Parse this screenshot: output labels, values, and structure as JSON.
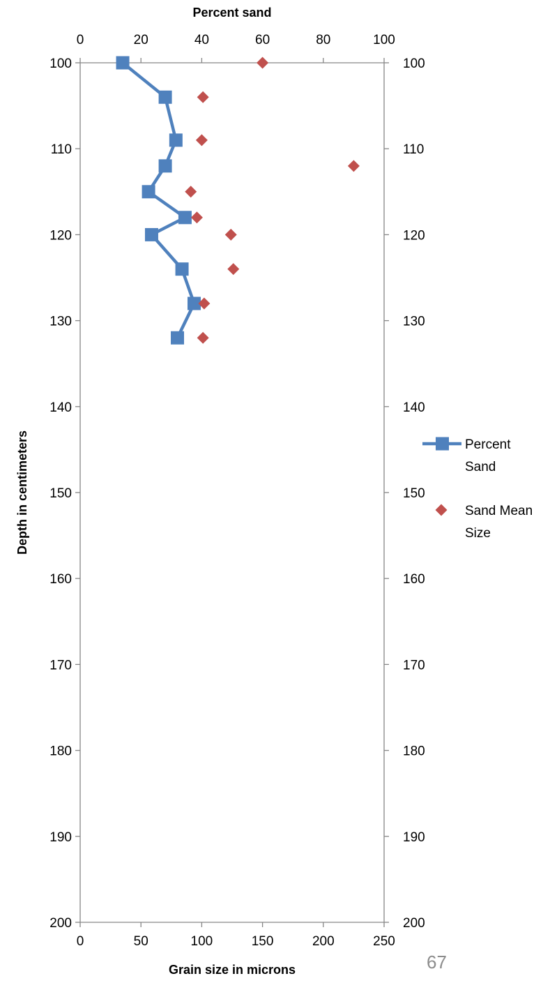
{
  "chart_data": {
    "type": "scatter",
    "top_axis_label": "Percent sand",
    "bottom_axis_label": "Grain size in microns",
    "y_axis_label": "Depth in centimeters",
    "y_range": [
      100,
      200
    ],
    "y_inverted": true,
    "y_ticks": [
      "100",
      "110",
      "120",
      "130",
      "140",
      "150",
      "160",
      "170",
      "180",
      "190",
      "200"
    ],
    "top_axis_range": [
      0,
      100
    ],
    "top_ticks": [
      "0",
      "20",
      "40",
      "60",
      "80",
      "100"
    ],
    "bottom_axis_range": [
      0,
      250
    ],
    "bottom_ticks": [
      "0",
      "50",
      "100",
      "150",
      "200",
      "250"
    ],
    "right_ticks": [
      "100",
      "110",
      "120",
      "130",
      "140",
      "150",
      "160",
      "170",
      "180",
      "190",
      "200"
    ],
    "grid": false,
    "legend_position": "right",
    "series": [
      {
        "name": "Percent Sand",
        "axis": "top",
        "style": "line-square",
        "color": "#4f81bd",
        "points": [
          {
            "x": 14,
            "y": 100
          },
          {
            "x": 28,
            "y": 104
          },
          {
            "x": 31.5,
            "y": 109
          },
          {
            "x": 28,
            "y": 112
          },
          {
            "x": 22.5,
            "y": 115
          },
          {
            "x": 34.5,
            "y": 118
          },
          {
            "x": 23.5,
            "y": 120
          },
          {
            "x": 33.5,
            "y": 124
          },
          {
            "x": 37.5,
            "y": 128
          },
          {
            "x": 32,
            "y": 132
          }
        ]
      },
      {
        "name": "Sand Mean Size",
        "axis": "bottom",
        "style": "diamond",
        "color": "#c0504d",
        "points": [
          {
            "x": 150,
            "y": 100
          },
          {
            "x": 101,
            "y": 104
          },
          {
            "x": 100,
            "y": 109
          },
          {
            "x": 225,
            "y": 112
          },
          {
            "x": 91,
            "y": 115
          },
          {
            "x": 96,
            "y": 118
          },
          {
            "x": 124,
            "y": 120
          },
          {
            "x": 126,
            "y": 124
          },
          {
            "x": 102,
            "y": 128
          },
          {
            "x": 101,
            "y": 132
          }
        ]
      }
    ],
    "legend": [
      "Percent\nSand",
      "Sand Mean\nSize"
    ]
  },
  "page_number": "67"
}
